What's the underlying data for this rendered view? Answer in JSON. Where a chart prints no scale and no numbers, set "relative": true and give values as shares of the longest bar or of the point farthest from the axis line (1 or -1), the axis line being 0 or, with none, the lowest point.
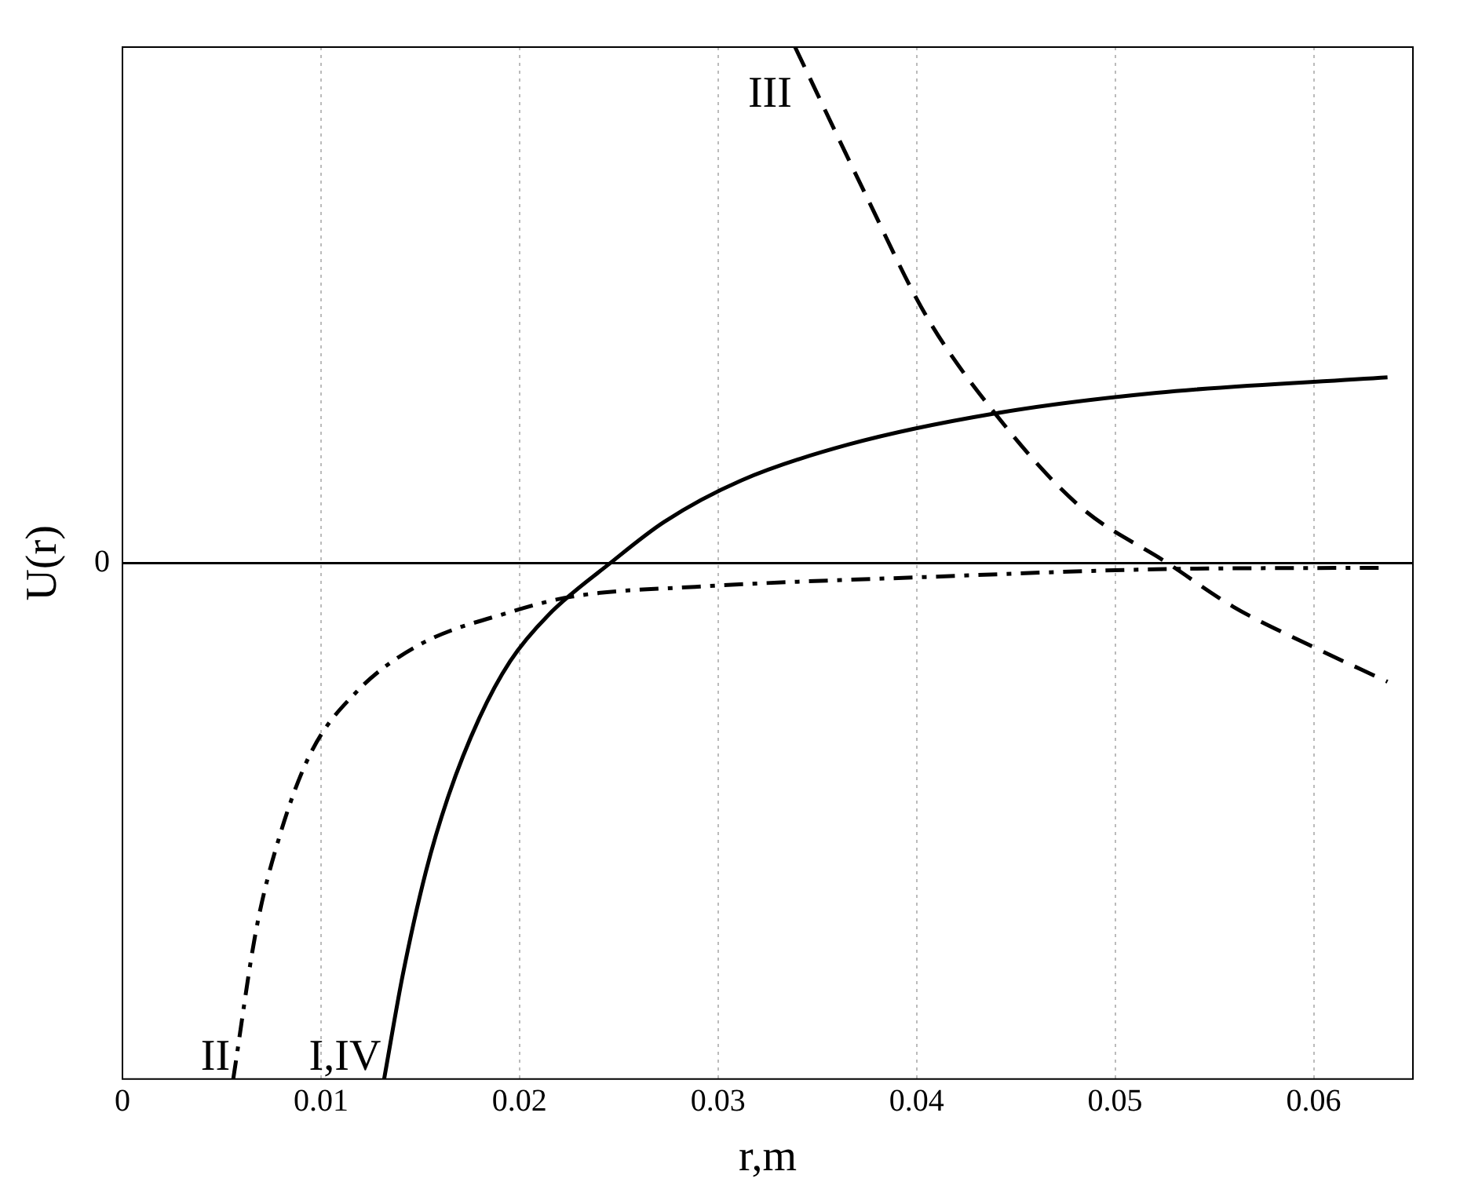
{
  "chart_data": {
    "type": "line",
    "relative": true,
    "xlabel": "r,m",
    "ylabel": "U(r)",
    "xlim": [
      0,
      0.065
    ],
    "xticks": [
      0,
      0.01,
      0.02,
      0.03,
      0.04,
      0.05,
      0.06
    ],
    "grid": "x",
    "legend": false,
    "marker": "none",
    "annotations": [
      "0"
    ],
    "series": [
      {
        "name": "I,IV",
        "color": "#000000",
        "line_style": "solid",
        "x": [
          0.01318,
          0.01411,
          0.01527,
          0.01643,
          0.01798,
          0.01953,
          0.02147,
          0.02457,
          0.02729,
          0.03116,
          0.03659,
          0.04395,
          0.05209,
          0.06372
        ],
        "values": [
          -1.0,
          -0.8,
          -0.6,
          -0.45,
          -0.3,
          -0.19,
          -0.1,
          0,
          0.08,
          0.16,
          0.23,
          0.29,
          0.33,
          0.36
        ]
      },
      {
        "name": "II",
        "color": "#000000",
        "line_style": "dashdot",
        "x": [
          0.00558,
          0.00674,
          0.00791,
          0.00946,
          0.01178,
          0.01488,
          0.01953,
          0.02264,
          0.02884,
          0.04047,
          0.05209,
          0.06372
        ],
        "values": [
          -1.0,
          -0.71,
          -0.53,
          -0.37,
          -0.25,
          -0.16,
          -0.095,
          -0.065,
          -0.046,
          -0.027,
          -0.012,
          -0.009
        ]
      },
      {
        "name": "III",
        "color": "#000000",
        "line_style": "dashed",
        "x": [
          0.03388,
          0.03736,
          0.04047,
          0.04395,
          0.04822,
          0.05264,
          0.05597,
          0.05984,
          0.06372
        ],
        "values": [
          1.0,
          0.72,
          0.48,
          0.29,
          0.11,
          0,
          -0.085,
          -0.16,
          -0.23
        ]
      }
    ]
  }
}
